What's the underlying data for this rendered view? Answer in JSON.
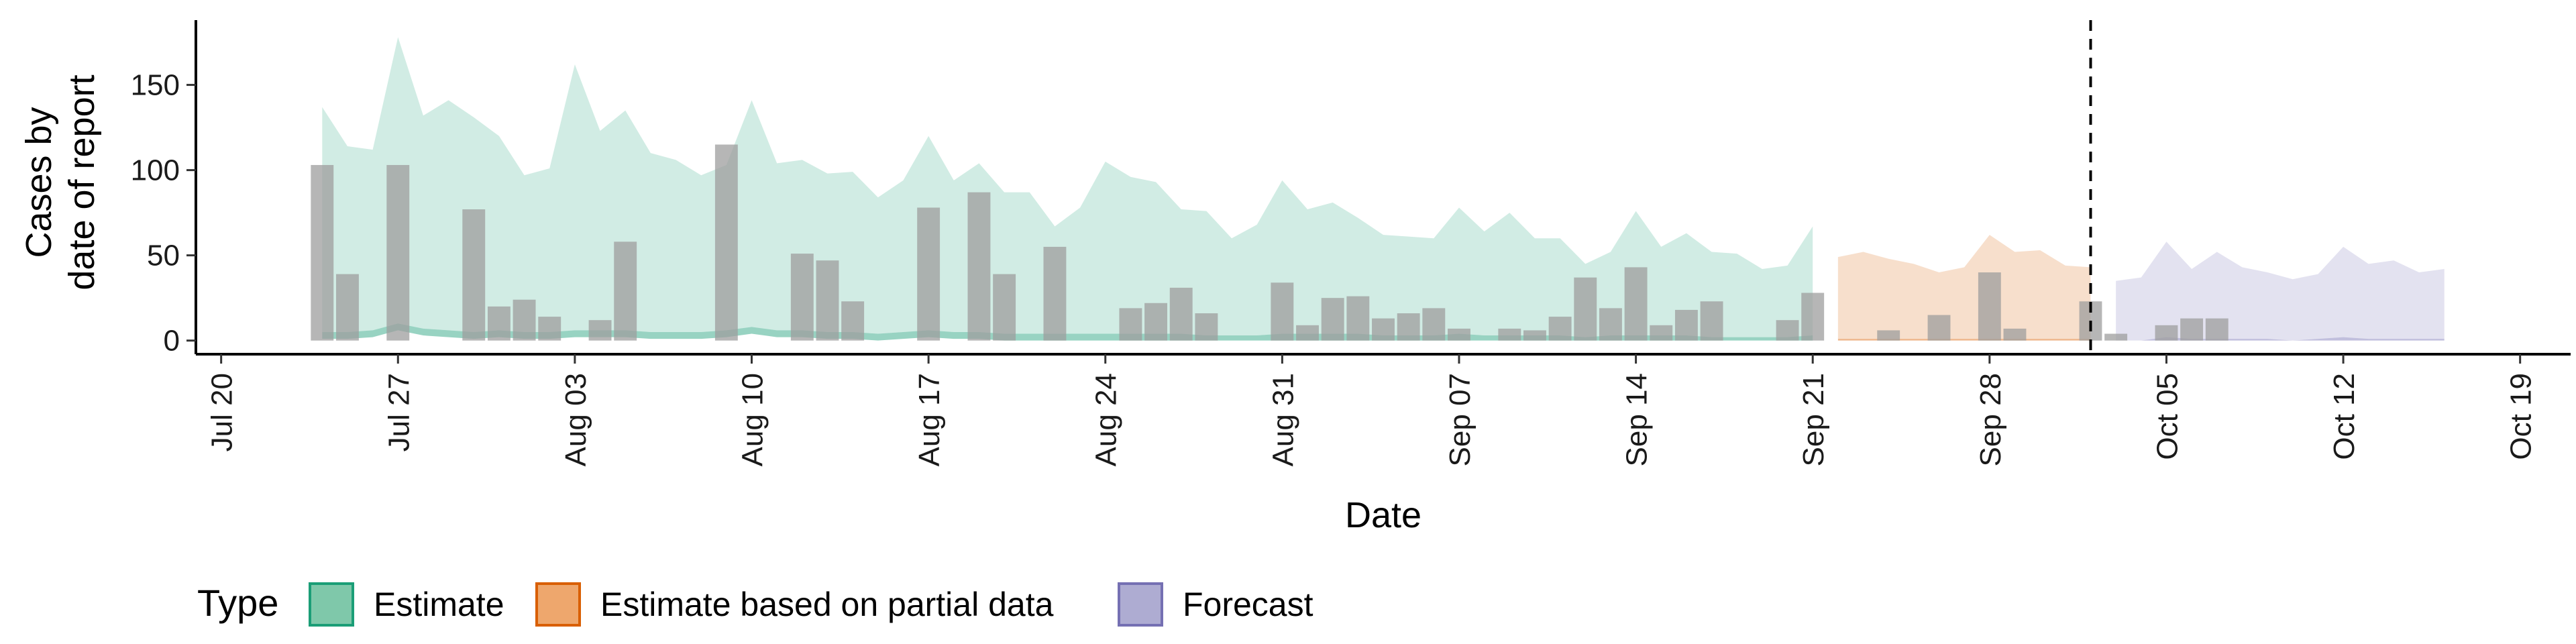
{
  "chart_data": {
    "type": "area",
    "xlabel": "Date",
    "ylabel_lines": [
      "Cases by",
      "date of report"
    ],
    "x_ticks": [
      "Jul 20",
      "Jul 27",
      "Aug 03",
      "Aug 10",
      "Aug 17",
      "Aug 24",
      "Aug 31",
      "Sep 07",
      "Sep 14",
      "Sep 21",
      "Sep 28",
      "Oct 05",
      "Oct 12",
      "Oct 19"
    ],
    "y_ticks": [
      "0",
      "50",
      "100",
      "150"
    ],
    "xlim": [
      "2020-07-19",
      "2020-10-21"
    ],
    "ylim": [
      -8,
      188
    ],
    "vline_date": "2020-10-02",
    "legend": {
      "title": "Type",
      "position": "bottom",
      "items": [
        {
          "label": "Estimate",
          "fill": "#7fc8aa",
          "stroke": "#1b9e77"
        },
        {
          "label": "Estimate based on partial data",
          "fill": "#eea76d",
          "stroke": "#d95f02"
        },
        {
          "label": "Forecast",
          "fill": "#aeacd2",
          "stroke": "#7570b3"
        }
      ]
    },
    "colors": {
      "estimate": "#1b9e77",
      "partial": "#d95f02",
      "forecast": "#7570b3",
      "bars": "#9d9d9d"
    },
    "series": [
      {
        "type": "Estimate",
        "start_date": "2020-07-24",
        "upper": [
          137,
          114,
          112,
          178,
          132,
          141,
          131,
          120,
          97,
          101,
          162,
          123,
          135,
          110,
          106,
          97,
          103,
          141,
          104,
          106,
          98,
          99,
          84,
          94,
          120,
          94,
          104,
          87,
          87,
          67,
          78,
          105,
          96,
          93,
          77,
          76,
          60,
          68,
          94,
          77,
          81,
          72,
          62,
          61,
          60,
          78,
          64,
          75,
          60,
          60,
          45,
          52,
          76,
          55,
          63,
          52,
          51,
          42,
          44,
          67
        ],
        "lower": [
          5,
          5,
          6,
          10,
          7,
          6,
          5,
          6,
          5,
          5,
          6,
          6,
          6,
          5,
          5,
          5,
          6,
          8,
          6,
          6,
          5,
          5,
          4,
          5,
          6,
          5,
          5,
          4,
          4,
          4,
          4,
          4,
          4,
          4,
          4,
          3,
          3,
          3,
          4,
          4,
          4,
          4,
          3,
          3,
          3,
          4,
          3,
          3,
          3,
          3,
          2,
          3,
          3,
          3,
          3,
          2,
          2,
          2,
          2,
          3
        ]
      },
      {
        "type": "Estimate based on partial data",
        "start_date": "2020-09-22",
        "upper": [
          49,
          52,
          48,
          45,
          40,
          43,
          62,
          52,
          53,
          44,
          43
        ],
        "lower": [
          1,
          1,
          1,
          1,
          1,
          1,
          1,
          1,
          1,
          1,
          1
        ]
      },
      {
        "type": "Forecast",
        "start_date": "2020-10-03",
        "upper": [
          35,
          37,
          58,
          42,
          52,
          43,
          40,
          36,
          39,
          55,
          45,
          47,
          40,
          42
        ],
        "lower": [
          0,
          0,
          2,
          1,
          1,
          1,
          1,
          0,
          1,
          2,
          1,
          1,
          1,
          1
        ]
      }
    ],
    "reported_cases": {
      "start_date": "2020-07-24",
      "values": [
        103,
        39,
        0,
        103,
        0,
        0,
        77,
        20,
        24,
        14,
        0,
        12,
        58,
        0,
        0,
        0,
        115,
        0,
        0,
        51,
        47,
        23,
        0,
        0,
        78,
        0,
        87,
        39,
        0,
        55,
        0,
        0,
        19,
        22,
        31,
        16,
        0,
        0,
        34,
        9,
        25,
        26,
        13,
        16,
        19,
        7,
        0,
        7,
        6,
        14,
        37,
        19,
        43,
        9,
        18,
        23,
        0,
        0,
        12,
        28,
        0,
        0,
        6,
        0,
        15,
        0,
        40,
        7,
        0,
        0,
        23,
        4,
        0,
        9,
        13,
        13
      ]
    }
  }
}
